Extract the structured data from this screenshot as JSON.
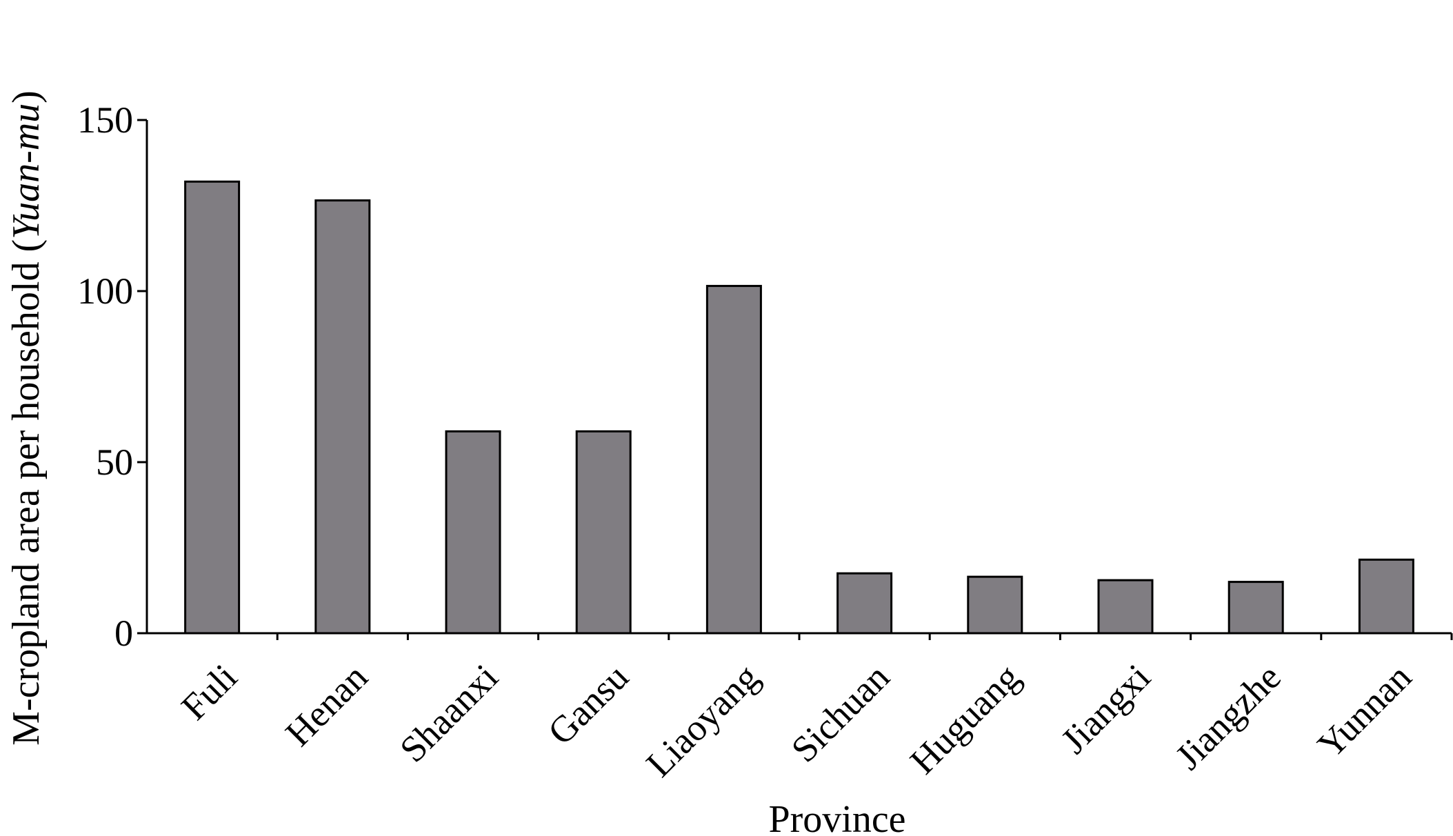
{
  "chart_data": {
    "type": "bar",
    "title": "",
    "xlabel": "Province",
    "ylabel_main": "M-cropland area per household (",
    "ylabel_italic": "Yuan-mu",
    "ylabel_close": ")",
    "categories": [
      "Fuli",
      "Henan",
      "Shaanxi",
      "Gansu",
      "Liaoyang",
      "Sichuan",
      "Huguang",
      "Jiangxi",
      "Jiangzhe",
      "Yunnan"
    ],
    "values": [
      132,
      126.5,
      59,
      59,
      101.5,
      17.5,
      16.5,
      15.5,
      15,
      21.5
    ],
    "ylim": [
      0,
      150
    ],
    "yticks": [
      0,
      50,
      100,
      150
    ],
    "ytick_labels": [
      "0",
      "50",
      "100",
      "150"
    ],
    "grid": false,
    "legend": "none",
    "colors": {
      "bar_fill": "#807d82",
      "bar_stroke": "#000000",
      "axis": "#000000"
    }
  }
}
